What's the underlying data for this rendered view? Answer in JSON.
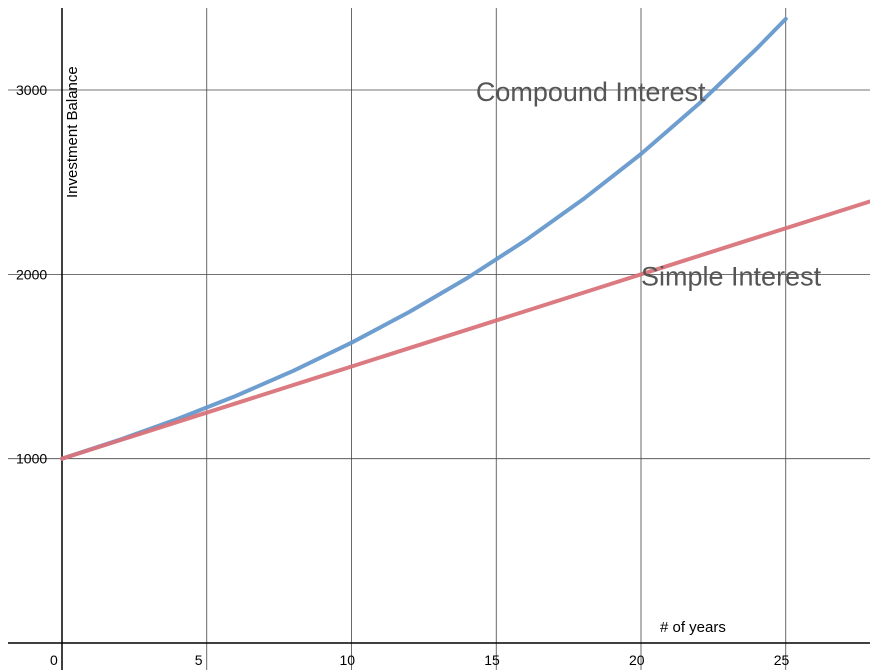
{
  "chart_data": {
    "type": "line",
    "xlabel": "# of years",
    "ylabel": "Investment Balance",
    "xlim": [
      -2,
      28
    ],
    "ylim": [
      0,
      3420
    ],
    "x_ticks": [
      0,
      5,
      10,
      15,
      20,
      25
    ],
    "y_ticks": [
      1000,
      2000,
      3000
    ],
    "x_tick_labels": [
      "0",
      "5",
      "10",
      "15",
      "20",
      "25"
    ],
    "y_tick_labels": [
      "1000",
      "2000",
      "3000"
    ],
    "grid": true,
    "series": [
      {
        "name": "Compound Interest",
        "color": "#6699cc",
        "x": [
          0,
          2,
          4,
          6,
          8,
          10,
          12,
          14,
          16,
          18,
          20,
          22,
          24,
          25
        ],
        "y": [
          1000,
          1103,
          1216,
          1340,
          1477,
          1629,
          1796,
          1980,
          2183,
          2407,
          2653,
          2925,
          3225,
          3386
        ]
      },
      {
        "name": "Simple Interest",
        "color": "#d9737a",
        "x": [
          0,
          28
        ],
        "y": [
          1000,
          2400
        ]
      }
    ],
    "annotations": [
      {
        "text": "Compound Interest",
        "x": 19.2,
        "y": 3000
      },
      {
        "text": "Simple Interest",
        "x": 20,
        "y": 2000
      }
    ]
  }
}
